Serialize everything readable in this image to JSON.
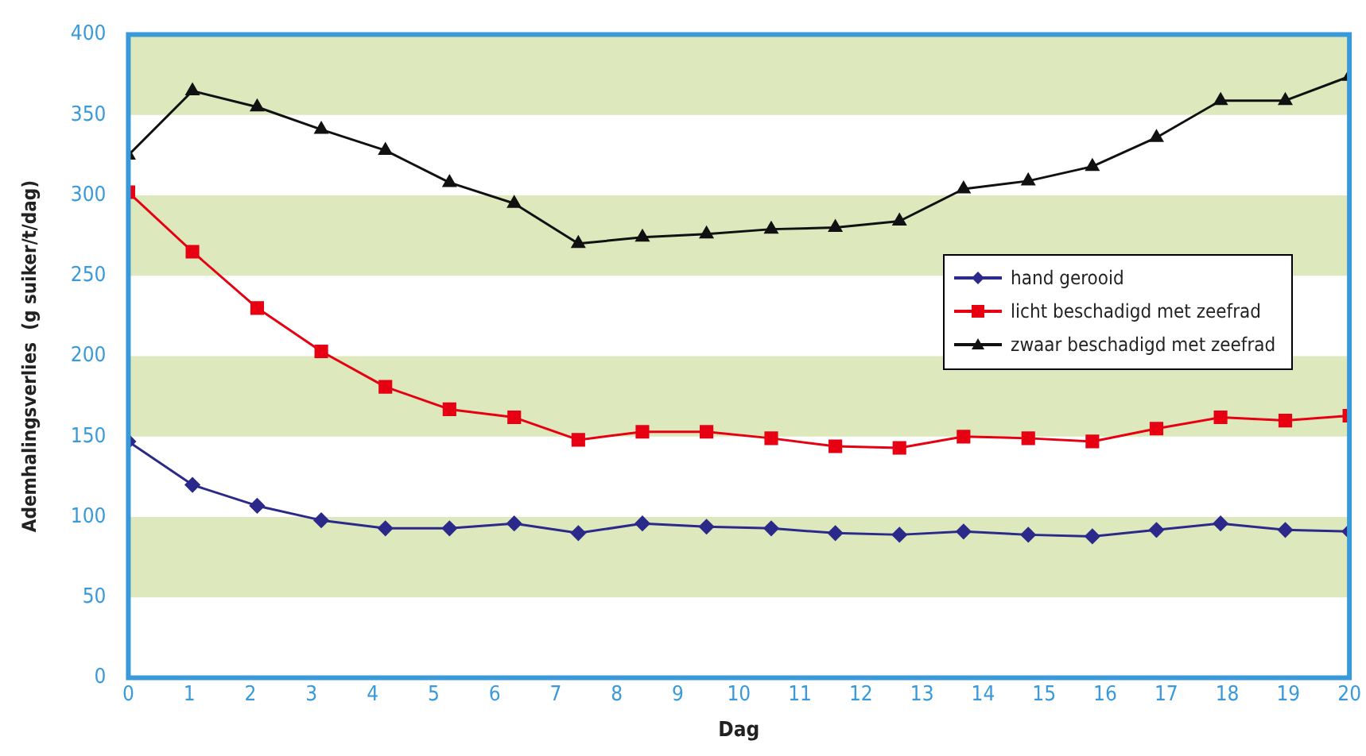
{
  "chart_data": {
    "type": "line",
    "xlabel": "Dag",
    "ylabel": "Ademhalingsverlies  (g suiker/t/dag)",
    "x": [
      0,
      1.05,
      2.11,
      3.16,
      4.21,
      5.26,
      6.32,
      7.37,
      8.42,
      9.47,
      10.53,
      11.58,
      12.63,
      13.68,
      14.74,
      15.79,
      16.84,
      17.89,
      18.95,
      20
    ],
    "series": [
      {
        "name": "hand gerooid",
        "color": "#2b2a8a",
        "marker": "diamond",
        "values": [
          147,
          120,
          107,
          98,
          93,
          93,
          96,
          90,
          96,
          94,
          93,
          90,
          89,
          91,
          89,
          88,
          92,
          96,
          92,
          91
        ]
      },
      {
        "name": "licht beschadigd met zeefrad",
        "color": "#e60012",
        "marker": "square",
        "values": [
          302,
          265,
          230,
          203,
          181,
          167,
          162,
          148,
          153,
          153,
          149,
          144,
          143,
          150,
          149,
          147,
          155,
          162,
          160,
          163
        ]
      },
      {
        "name": "zwaar beschadigd met zeefrad",
        "color": "#111111",
        "marker": "triangle",
        "values": [
          325,
          365,
          355,
          341,
          328,
          308,
          295,
          270,
          274,
          276,
          279,
          280,
          284,
          304,
          309,
          318,
          336,
          359,
          359,
          374
        ]
      }
    ],
    "xlim": [
      0,
      20
    ],
    "xticks": [
      0,
      1,
      2,
      3,
      4,
      5,
      6,
      7,
      8,
      9,
      10,
      11,
      12,
      13,
      14,
      15,
      16,
      17,
      18,
      19,
      20
    ],
    "ylim": [
      0,
      400
    ],
    "yticks": [
      0,
      50,
      100,
      150,
      200,
      250,
      300,
      350,
      400
    ],
    "bands": [
      {
        "axis": "y",
        "from": 50,
        "to": 100,
        "color": "#dde8bd"
      },
      {
        "axis": "y",
        "from": 150,
        "to": 200,
        "color": "#dde8bd"
      },
      {
        "axis": "y",
        "from": 250,
        "to": 300,
        "color": "#dde8bd"
      },
      {
        "axis": "y",
        "from": 350,
        "to": 400,
        "color": "#dde8bd"
      }
    ],
    "grid": false,
    "legend": "center right",
    "line_style": "solid"
  }
}
